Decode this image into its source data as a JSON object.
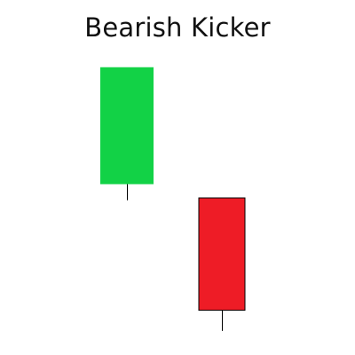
{
  "chart_data": {
    "type": "candlestick",
    "title": "Bearish Kicker",
    "candles": [
      {
        "direction": "bullish",
        "open": 4.6,
        "close": 9.7,
        "high": 9.7,
        "low": 3.9,
        "color": "#12d246"
      },
      {
        "direction": "bearish",
        "open": 4.0,
        "close": -0.9,
        "high": 4.0,
        "low": -1.8,
        "color": "#ee1c26"
      }
    ],
    "grid": false,
    "legend": "none"
  }
}
